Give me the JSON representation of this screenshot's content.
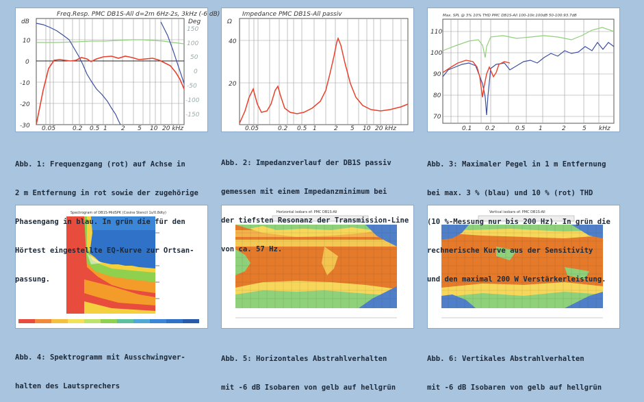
{
  "captions": {
    "fig1": [
      "Abb. 1: Frequenzgang (rot) auf Achse in",
      "2 m Entfernung in rot sowie der zugehörige",
      "Phasengang in blau. In grün die für den",
      "Hörtest eingestellte EQ-Kurve zur Ortsan-",
      "passung."
    ],
    "fig2": [
      "Abb. 2: Impedanzverlauf der DB1S passiv",
      "gemessen mit einem Impedanzminimum bei",
      "der tiefsten Resonanz der Transmission-Line",
      "von ca. 57 Hz."
    ],
    "fig3": [
      "Abb. 3: Maximaler Pegel in 1 m Entfernung",
      "bei max. 3 % (blau) und 10 % (rot) THD",
      "(10 %-Messung nur bis 200 Hz). In grün die",
      "rechnerische Kurve aus der Sensitivity",
      "und den maximal 200 W Verstärkerleistung."
    ],
    "fig4": [
      "Abb. 4: Spektrogramm mit Ausschwingver-",
      "halten des Lautsprechers"
    ],
    "fig5": [
      "Abb. 5: Horizontales Abstrahlverhalten",
      "mit -6 dB Isobaren von gelb auf hellgrün"
    ],
    "fig6": [
      "Abb. 6: Vertikales Abstrahlverhalten",
      "mit -6 dB Isobaren von gelb auf hellgrün"
    ]
  },
  "chart1": {
    "title": "Freq.Resp. PMC DB1S-All d=2m 6Hz-2s, 3kHz (-6 dB)",
    "left_unit": "dB",
    "right_unit": "Deg",
    "y_ticks": [
      "10",
      "0",
      "-10",
      "-20",
      "-30"
    ],
    "phase_ticks": [
      "150",
      "100",
      "50",
      "0",
      "-50",
      "-100",
      "-150"
    ],
    "x_ticks": [
      "0.05",
      "0.2",
      "0.5",
      "1",
      "2",
      "5",
      "10",
      "20 kHz"
    ]
  },
  "chart2": {
    "title": "Impedance PMC DB1S-All passiv",
    "unit": "Ω",
    "y_ticks": [
      "40",
      "20"
    ],
    "x_ticks": [
      "0.05",
      "0.2",
      "0.5",
      "1",
      "2",
      "5",
      "10",
      "20 kHz"
    ]
  },
  "chart3": {
    "title": "Max. SPL @ 3% 10% THD PMC DB1S-All 100-10k:100dB 50-100:93.7dB",
    "y_ticks": [
      "110",
      "100",
      "90",
      "80",
      "70"
    ],
    "x_ticks": [
      "0.1",
      "0.2",
      "0.5",
      "1",
      "2",
      "5",
      "kHz"
    ]
  },
  "chart4": {
    "title": "Spectrogram of DB1S-MidSPK (Cosine Stencil 1s/0.8dty)"
  },
  "chart5": {
    "title": "Horizontal isobars of: PMC DB1S-All"
  },
  "chart6": {
    "title": "Vertical isobars of: PMC DB1S-All"
  },
  "colors": {
    "background": "#a9c4de",
    "response": "#e8402a",
    "phase": "#3a4fa0",
    "eq": "#8fd07a",
    "caption": "#1d2a3a"
  }
}
